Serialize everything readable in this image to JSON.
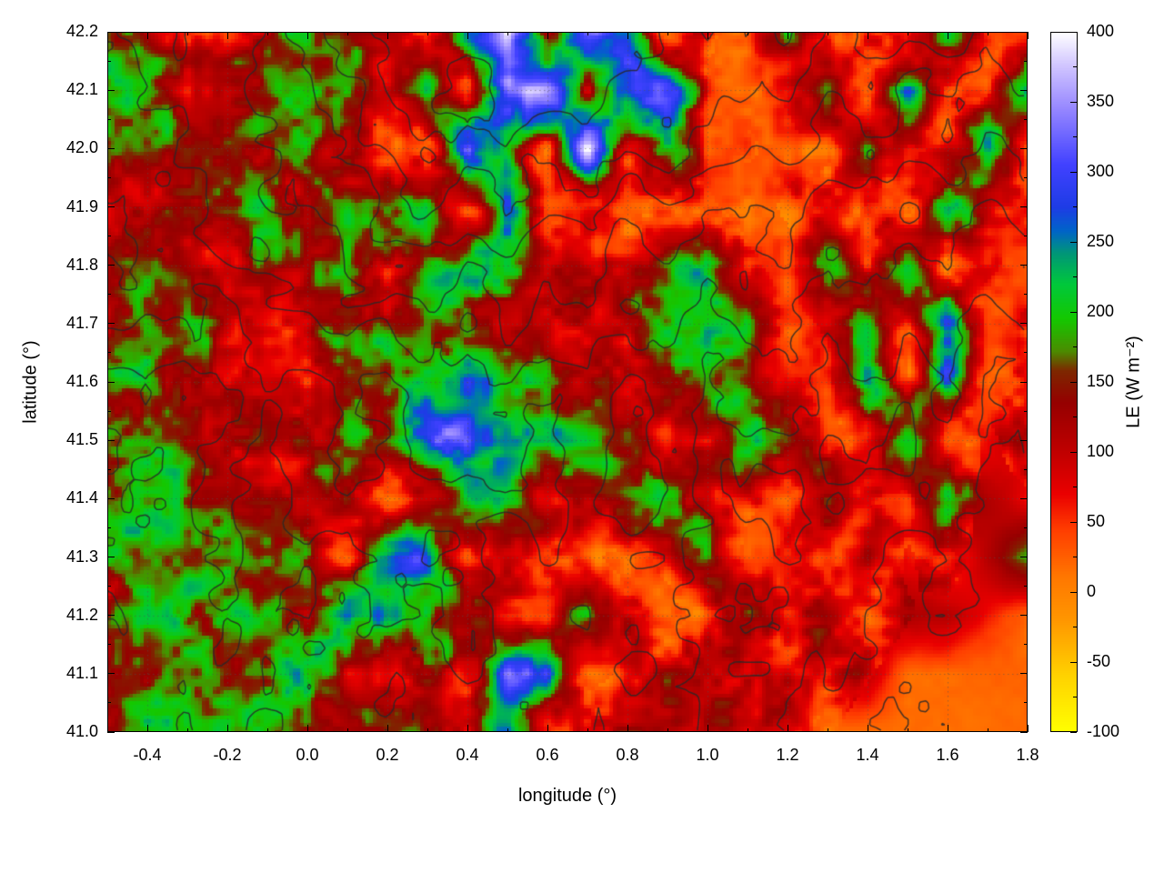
{
  "chart_data": {
    "type": "heatmap",
    "title": "",
    "xlabel": "longitude (°)",
    "ylabel": "latitude (°)",
    "xlim": [
      -0.5,
      1.8
    ],
    "ylim": [
      41.0,
      42.2
    ],
    "grid_on": true,
    "x_tick_values": [
      -0.4,
      -0.2,
      0.0,
      0.2,
      0.4,
      0.6,
      0.8,
      1.0,
      1.2,
      1.4,
      1.6,
      1.8
    ],
    "x_tick_labels": [
      "-0.4",
      "-0.2",
      "0.0",
      "0.2",
      "0.4",
      "0.6",
      "0.8",
      "1.0",
      "1.2",
      "1.4",
      "1.6",
      "1.8"
    ],
    "y_tick_values": [
      41.0,
      41.1,
      41.2,
      41.3,
      41.4,
      41.5,
      41.6,
      41.7,
      41.8,
      41.9,
      42.0,
      42.1,
      42.2
    ],
    "y_tick_labels": [
      "41.0",
      "41.1",
      "41.2",
      "41.3",
      "41.4",
      "41.5",
      "41.6",
      "41.7",
      "41.8",
      "41.9",
      "42.0",
      "42.1",
      "42.2"
    ],
    "colorbar": {
      "label": "LE (W m⁻²)",
      "min": -100,
      "max": 400,
      "tick_values": [
        400,
        350,
        300,
        250,
        200,
        150,
        100,
        50,
        0,
        -50,
        -100
      ],
      "tick_labels": [
        "400",
        "350",
        "300",
        "250",
        "200",
        "150",
        "100",
        "50",
        "0",
        "-50",
        "-100"
      ],
      "palette_stops": [
        [
          -100,
          "#ffff00"
        ],
        [
          -60,
          "#ffd200"
        ],
        [
          -20,
          "#ff9600"
        ],
        [
          10,
          "#ff7800"
        ],
        [
          45,
          "#ff3c00"
        ],
        [
          70,
          "#ea0000"
        ],
        [
          100,
          "#c00000"
        ],
        [
          135,
          "#960000"
        ],
        [
          158,
          "#7d2800"
        ],
        [
          172,
          "#4b8c00"
        ],
        [
          195,
          "#14c800"
        ],
        [
          220,
          "#00c83c"
        ],
        [
          242,
          "#009678"
        ],
        [
          258,
          "#0064c8"
        ],
        [
          275,
          "#1e3ce6"
        ],
        [
          305,
          "#4141ff"
        ],
        [
          345,
          "#9687ff"
        ],
        [
          375,
          "#cfc3ff"
        ],
        [
          400,
          "#ffffff"
        ]
      ]
    },
    "grid": {
      "lon_start": -0.5,
      "lon_step": 0.1,
      "lat_start": 42.2,
      "lat_step": -0.1,
      "values": [
        [
          185,
          150,
          75,
          70,
          140,
          185,
          175,
          110,
          22,
          220,
          330,
          90,
          380,
          280,
          22,
          60,
          22,
          180,
          28,
          90,
          22,
          210,
          45,
          28
        ],
        [
          190,
          160,
          70,
          120,
          180,
          190,
          150,
          90,
          260,
          22,
          360,
          390,
          70,
          300,
          340,
          45,
          28,
          60,
          220,
          22,
          260,
          60,
          22,
          240
        ],
        [
          170,
          185,
          175,
          160,
          130,
          180,
          95,
          65,
          22,
          330,
          180,
          22,
          385,
          65,
          250,
          22,
          60,
          28,
          22,
          230,
          40,
          60,
          250,
          22
        ],
        [
          120,
          95,
          175,
          185,
          150,
          120,
          165,
          180,
          200,
          60,
          230,
          22,
          60,
          28,
          45,
          60,
          22,
          60,
          110,
          40,
          22,
          250,
          60,
          45
        ],
        [
          100,
          140,
          115,
          90,
          165,
          125,
          185,
          70,
          175,
          195,
          185,
          120,
          95,
          105,
          195,
          190,
          65,
          22,
          210,
          22,
          240,
          22,
          60,
          28
        ],
        [
          95,
          165,
          185,
          120,
          65,
          115,
          175,
          155,
          195,
          175,
          115,
          95,
          105,
          95,
          185,
          200,
          185,
          22,
          60,
          230,
          40,
          270,
          22,
          60
        ],
        [
          155,
          185,
          115,
          100,
          125,
          65,
          155,
          185,
          205,
          270,
          210,
          190,
          105,
          95,
          110,
          185,
          200,
          65,
          22,
          230,
          40,
          260,
          22,
          65
        ],
        [
          175,
          190,
          165,
          115,
          100,
          115,
          175,
          185,
          295,
          310,
          230,
          195,
          185,
          110,
          95,
          65,
          195,
          200,
          22,
          65,
          245,
          22,
          65,
          110
        ],
        [
          185,
          160,
          190,
          155,
          115,
          100,
          175,
          22,
          65,
          210,
          195,
          70,
          115,
          190,
          185,
          115,
          65,
          22,
          185,
          60,
          22,
          190,
          110,
          65
        ],
        [
          165,
          190,
          175,
          185,
          160,
          190,
          22,
          290,
          255,
          65,
          115,
          60,
          65,
          22,
          65,
          190,
          22,
          65,
          28,
          115,
          65,
          22,
          115,
          190
        ],
        [
          115,
          185,
          190,
          165,
          185,
          115,
          285,
          235,
          190,
          115,
          65,
          22,
          190,
          65,
          28,
          65,
          115,
          65,
          115,
          65,
          115,
          110,
          65,
          20
        ],
        [
          155,
          175,
          190,
          185,
          175,
          190,
          115,
          65,
          175,
          65,
          295,
          285,
          22,
          65,
          115,
          115,
          110,
          115,
          65,
          110,
          18,
          18,
          18,
          18
        ],
        [
          165,
          185,
          175,
          190,
          185,
          165,
          115,
          190,
          115,
          65,
          280,
          65,
          115,
          115,
          110,
          115,
          65,
          115,
          20,
          18,
          18,
          18,
          18,
          18
        ]
      ]
    },
    "contours": {
      "levels": [
        200,
        500,
        800,
        1100,
        1400,
        1700,
        2000
      ],
      "line_color": "#2d2d2d",
      "elevation_grid": [
        [
          800,
          900,
          1100,
          1000,
          1300,
          1500,
          1800,
          2000,
          2200,
          2000,
          2300,
          2100,
          2400,
          2200,
          1900,
          2100,
          1800,
          2000,
          1700,
          1900,
          1600,
          1800,
          1500,
          1700
        ],
        [
          700,
          800,
          950,
          1100,
          1250,
          1400,
          1700,
          1900,
          2100,
          1900,
          2200,
          2000,
          2200,
          1900,
          2100,
          1800,
          1600,
          1800,
          1500,
          1700,
          1400,
          1600,
          1300,
          1500
        ],
        [
          600,
          700,
          850,
          950,
          1100,
          1300,
          1500,
          1700,
          1900,
          1750,
          2000,
          1800,
          1950,
          1700,
          1850,
          1600,
          1400,
          1550,
          1300,
          1450,
          1200,
          1350,
          1100,
          1250
        ],
        [
          500,
          620,
          740,
          860,
          980,
          1150,
          1350,
          1500,
          1600,
          1500,
          1700,
          1450,
          1600,
          1350,
          1500,
          1250,
          1150,
          1300,
          1000,
          1150,
          900,
          1050,
          800,
          950
        ],
        [
          450,
          520,
          640,
          700,
          820,
          950,
          1100,
          1200,
          1300,
          1200,
          1400,
          1150,
          1300,
          1000,
          1150,
          900,
          950,
          1050,
          750,
          900,
          650,
          800,
          550,
          700
        ],
        [
          480,
          420,
          580,
          500,
          700,
          620,
          880,
          780,
          980,
          880,
          1080,
          820,
          980,
          720,
          880,
          620,
          750,
          850,
          550,
          700,
          450,
          600,
          350,
          500
        ],
        [
          520,
          450,
          620,
          400,
          640,
          480,
          760,
          560,
          760,
          660,
          860,
          600,
          760,
          500,
          660,
          400,
          560,
          660,
          380,
          520,
          280,
          420,
          200,
          320
        ],
        [
          560,
          500,
          660,
          440,
          600,
          380,
          660,
          460,
          640,
          560,
          760,
          480,
          660,
          380,
          560,
          300,
          460,
          560,
          260,
          420,
          160,
          320,
          120,
          220
        ],
        [
          600,
          540,
          700,
          480,
          640,
          400,
          580,
          360,
          560,
          460,
          660,
          380,
          560,
          280,
          460,
          340,
          560,
          460,
          320,
          340,
          220,
          240,
          120,
          130
        ],
        [
          650,
          580,
          750,
          520,
          680,
          440,
          620,
          400,
          500,
          340,
          560,
          440,
          660,
          560,
          760,
          460,
          340,
          560,
          240,
          340,
          130,
          220,
          90,
          110
        ],
        [
          700,
          620,
          800,
          560,
          720,
          480,
          660,
          440,
          560,
          380,
          600,
          500,
          700,
          600,
          660,
          380,
          440,
          340,
          280,
          220,
          160,
          110,
          60,
          40
        ],
        [
          750,
          660,
          850,
          600,
          760,
          520,
          700,
          480,
          600,
          440,
          660,
          560,
          760,
          500,
          560,
          330,
          380,
          280,
          220,
          160,
          100,
          60,
          25,
          15
        ],
        [
          800,
          700,
          900,
          640,
          820,
          560,
          760,
          520,
          660,
          480,
          700,
          600,
          660,
          440,
          480,
          280,
          320,
          220,
          160,
          100,
          60,
          25,
          10,
          5
        ]
      ]
    }
  }
}
